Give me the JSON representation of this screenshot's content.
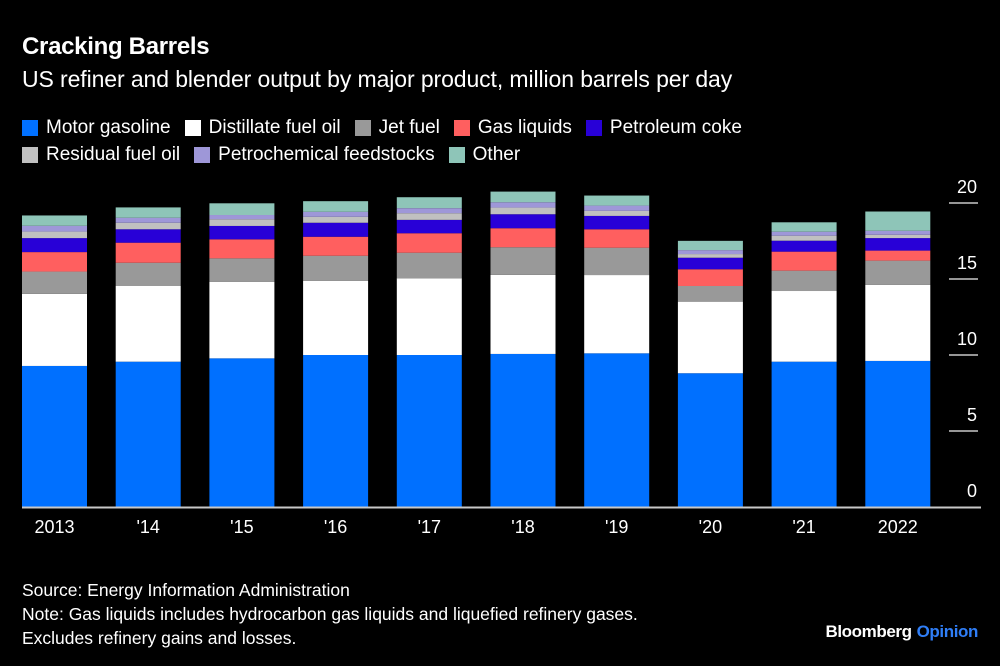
{
  "header": {
    "title": "Cracking Barrels",
    "subtitle": "US refiner and blender output by major product, million barrels per day"
  },
  "footer": {
    "source": "Source: Energy Information Administration",
    "note_line1": "Note: Gas liquids includes hydrocarbon gas liquids and liquefied refinery gases.",
    "note_line2": "Excludes refinery gains and losses."
  },
  "brand": {
    "name": "Bloomberg",
    "section": "Opinion",
    "section_color": "#2f7ef7"
  },
  "chart_data": {
    "type": "bar",
    "stacked": true,
    "title": "Cracking Barrels",
    "subtitle": "US refiner and blender output by major product, million barrels per day",
    "xlabel": "",
    "ylabel": "",
    "ylim": [
      0,
      20
    ],
    "yticks": [
      0,
      5,
      10,
      15,
      20
    ],
    "y_axis_side": "right",
    "grid": false,
    "legend_position": "top-left",
    "categories": [
      "2013",
      "'14",
      "'15",
      "'16",
      "'17",
      "'18",
      "'19",
      "'20",
      "'21",
      "2022"
    ],
    "series": [
      {
        "name": "Motor gasoline",
        "color": "#0070ff",
        "values": [
          9.28,
          9.56,
          9.78,
          10.0,
          10.0,
          10.07,
          10.11,
          8.8,
          9.56,
          9.61
        ]
      },
      {
        "name": "Distillate fuel oil",
        "color": "#ffffff",
        "values": [
          4.74,
          4.98,
          5.04,
          4.87,
          5.05,
          5.2,
          5.15,
          4.71,
          4.65,
          5.0
        ]
      },
      {
        "name": "Jet fuel",
        "color": "#999999",
        "values": [
          1.47,
          1.53,
          1.54,
          1.66,
          1.68,
          1.82,
          1.8,
          1.03,
          1.34,
          1.6
        ]
      },
      {
        "name": "Gas liquids",
        "color": "#ff5f5f",
        "values": [
          1.28,
          1.32,
          1.25,
          1.25,
          1.28,
          1.25,
          1.21,
          1.1,
          1.25,
          0.66
        ]
      },
      {
        "name": "Petroleum coke",
        "color": "#2800d7",
        "values": [
          0.92,
          0.88,
          0.88,
          0.92,
          0.88,
          0.92,
          0.88,
          0.76,
          0.72,
          0.82
        ]
      },
      {
        "name": "Residual fuel oil",
        "color": "#c0c0c0",
        "values": [
          0.43,
          0.43,
          0.44,
          0.39,
          0.44,
          0.44,
          0.33,
          0.24,
          0.33,
          0.22
        ]
      },
      {
        "name": "Petrochemical feedstocks",
        "color": "#9e97d8",
        "values": [
          0.38,
          0.33,
          0.28,
          0.33,
          0.33,
          0.35,
          0.35,
          0.26,
          0.26,
          0.26
        ]
      },
      {
        "name": "Other",
        "color": "#8ec5b8",
        "values": [
          0.68,
          0.68,
          0.77,
          0.7,
          0.72,
          0.7,
          0.66,
          0.61,
          0.62,
          1.27
        ]
      }
    ]
  }
}
